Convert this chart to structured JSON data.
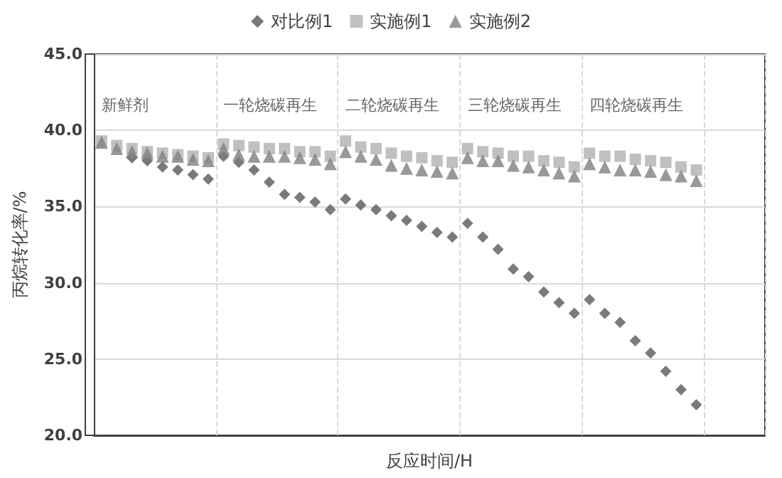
{
  "chart_data": {
    "type": "scatter",
    "xlabel": "反应时间/H",
    "ylabel": "丙烷转化率/%",
    "categories": [
      null,
      null,
      null,
      null,
      null,
      null,
      null,
      null,
      null,
      null,
      null,
      null,
      null,
      null,
      null,
      null,
      null,
      null,
      null,
      null,
      null,
      null,
      null,
      null,
      null,
      null,
      null,
      null,
      null,
      null,
      null,
      null,
      null,
      null,
      null,
      null,
      null,
      null,
      null,
      null,
      null,
      null,
      null,
      null
    ],
    "ylim": [
      20,
      45
    ],
    "yticks": [
      {
        "value": 20,
        "label": "20.0"
      },
      {
        "value": 25,
        "label": "25.0"
      },
      {
        "value": 30,
        "label": "30.0"
      },
      {
        "value": 35,
        "label": "35.0"
      },
      {
        "value": 40,
        "label": "40.0"
      },
      {
        "value": 45,
        "label": "45.0"
      }
    ],
    "tick_labels": "y",
    "grid": true,
    "legend": "top",
    "series": [
      {
        "name": "对比例1",
        "color": "#595959",
        "marker": "diamond",
        "values": [
          null,
          null,
          38.2,
          38.0,
          37.6,
          37.4,
          37.1,
          36.8,
          38.3,
          37.9,
          37.4,
          36.6,
          35.8,
          35.6,
          35.3,
          34.8,
          35.5,
          35.1,
          34.8,
          34.4,
          34.1,
          33.7,
          33.3,
          33.0,
          33.9,
          33.0,
          32.2,
          30.9,
          30.4,
          29.4,
          28.7,
          28.0,
          28.9,
          28.0,
          27.4,
          26.2,
          25.4,
          24.2,
          23.0,
          22.0,
          null,
          null,
          null,
          null
        ]
      },
      {
        "name": "实施例1",
        "color": "#b0b0b0",
        "marker": "square",
        "values": [
          39.3,
          39.0,
          38.8,
          38.6,
          38.5,
          38.4,
          38.3,
          38.2,
          39.1,
          39.0,
          38.9,
          38.8,
          38.8,
          38.6,
          38.6,
          38.3,
          39.3,
          38.9,
          38.8,
          38.5,
          38.3,
          38.2,
          38.0,
          37.9,
          38.8,
          38.6,
          38.5,
          38.3,
          38.3,
          38.0,
          37.9,
          37.6,
          38.5,
          38.3,
          38.3,
          38.1,
          38.0,
          37.9,
          37.6,
          37.4,
          null,
          null,
          null,
          null
        ]
      },
      {
        "name": "实施例2",
        "color": "#808080",
        "marker": "triangle",
        "values": [
          39.2,
          38.8,
          38.6,
          38.5,
          38.3,
          38.3,
          38.1,
          38.0,
          38.8,
          38.4,
          38.3,
          38.3,
          38.3,
          38.2,
          38.1,
          37.8,
          38.6,
          38.3,
          38.1,
          37.7,
          37.5,
          37.4,
          37.3,
          37.2,
          38.2,
          38.0,
          38.0,
          37.7,
          37.6,
          37.4,
          37.2,
          37.0,
          37.8,
          37.6,
          37.4,
          37.4,
          37.3,
          37.1,
          37.0,
          36.7,
          null,
          null,
          null,
          null
        ]
      }
    ],
    "annotations": [
      "新鲜剂",
      "一轮烧碳再生",
      "二轮烧碳再生",
      "三轮烧碳再生",
      "四轮烧碳再生"
    ]
  }
}
